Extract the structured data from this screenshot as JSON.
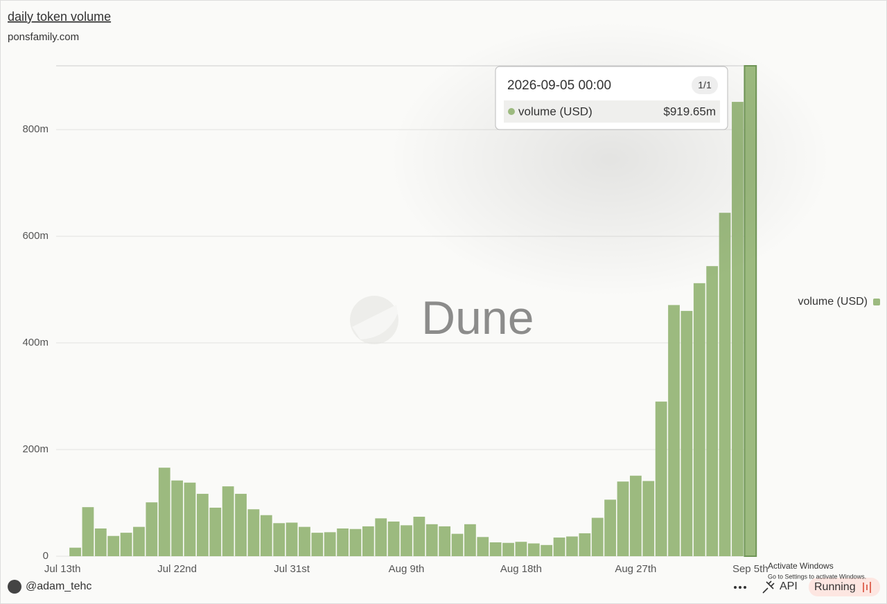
{
  "chart_data": {
    "type": "bar",
    "title": "daily token volume",
    "subtitle": "ponsfamily.com",
    "x": [
      "2026-07-14",
      "2026-07-15",
      "2026-07-16",
      "2026-07-17",
      "2026-07-18",
      "2026-07-19",
      "2026-07-20",
      "2026-07-21",
      "2026-07-22",
      "2026-07-23",
      "2026-07-24",
      "2026-07-25",
      "2026-07-26",
      "2026-07-27",
      "2026-07-28",
      "2026-07-29",
      "2026-07-30",
      "2026-07-31",
      "2026-08-01",
      "2026-08-02",
      "2026-08-03",
      "2026-08-04",
      "2026-08-05",
      "2026-08-06",
      "2026-08-07",
      "2026-08-08",
      "2026-08-09",
      "2026-08-10",
      "2026-08-11",
      "2026-08-12",
      "2026-08-13",
      "2026-08-14",
      "2026-08-15",
      "2026-08-16",
      "2026-08-17",
      "2026-08-18",
      "2026-08-19",
      "2026-08-20",
      "2026-08-21",
      "2026-08-22",
      "2026-08-23",
      "2026-08-24",
      "2026-08-25",
      "2026-08-26",
      "2026-08-27",
      "2026-08-28",
      "2026-08-29",
      "2026-08-30",
      "2026-08-31",
      "2026-09-01",
      "2026-09-02",
      "2026-09-03",
      "2026-09-04",
      "2026-09-05"
    ],
    "series": [
      {
        "name": "volume (USD)",
        "color": "#9cba7f",
        "values": [
          16,
          92,
          52,
          38,
          44,
          55,
          101,
          166,
          142,
          138,
          117,
          91,
          131,
          117,
          88,
          77,
          62,
          63,
          55,
          44,
          45,
          52,
          51,
          56,
          71,
          65,
          58,
          74,
          60,
          56,
          42,
          60,
          36,
          26,
          25,
          27,
          24,
          21,
          35,
          37,
          43,
          72,
          106,
          140,
          151,
          141,
          290,
          471,
          460,
          512,
          544,
          644,
          852,
          919.65
        ]
      }
    ],
    "xlim": [
      "2026-07-12T12:00",
      "2026-09-05T12:00"
    ],
    "xticks": [
      {
        "value": "2026-07-13",
        "label": "Jul 13th"
      },
      {
        "value": "2026-07-22",
        "label": "Jul 22nd"
      },
      {
        "value": "2026-07-31",
        "label": "Jul 31st"
      },
      {
        "value": "2026-08-09",
        "label": "Aug 9th"
      },
      {
        "value": "2026-08-18",
        "label": "Aug 18th"
      },
      {
        "value": "2026-08-27",
        "label": "Aug 27th"
      },
      {
        "value": "2026-09-05",
        "label": "Sep 5th"
      }
    ],
    "ylim": [
      0,
      919.65
    ],
    "yticks": [
      0,
      {
        "value": 200,
        "label": "200m"
      },
      {
        "value": 400,
        "label": "400m"
      },
      {
        "value": 600,
        "label": "600m"
      },
      {
        "value": 800,
        "label": "800m"
      }
    ],
    "grid": true,
    "legend": "right",
    "tooltip": {
      "title": "2026-09-05 00:00",
      "page": "1/1",
      "series": "volume (USD)",
      "value_label": "$919.65m"
    }
  },
  "watermark": "Dune",
  "footer": {
    "author": "@adam_tehc",
    "api": "API",
    "status": "Running",
    "notice": "Activate Windows",
    "notice_sub": "Go to Settings to activate Windows."
  }
}
